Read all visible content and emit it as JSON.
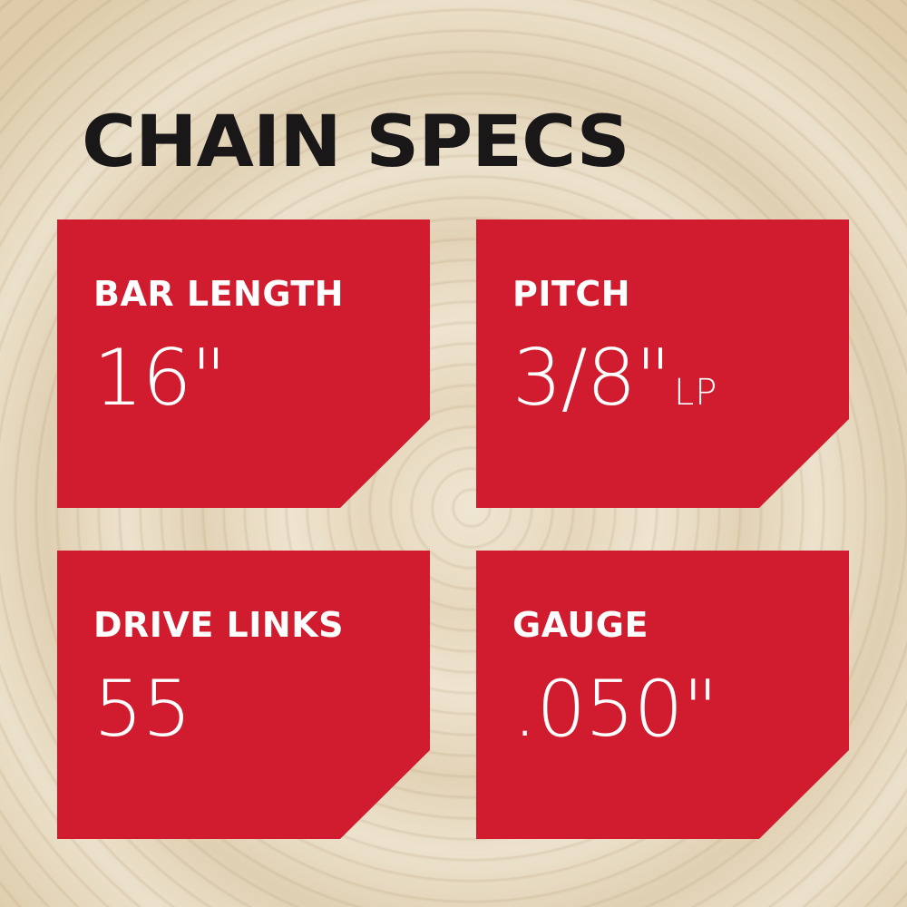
{
  "title": "CHAIN SPECS",
  "specs": [
    {
      "label": "BAR LENGTH",
      "value": "16\"",
      "suffix": ""
    },
    {
      "label": "PITCH",
      "value": "3/8\"",
      "suffix": "LP"
    },
    {
      "label": "DRIVE LINKS",
      "value": "55",
      "suffix": ""
    },
    {
      "label": "GAUGE",
      "value": ".050\"",
      "suffix": ""
    }
  ],
  "colors": {
    "card": "#d01c2e",
    "title": "#1a1718",
    "background": "#e8dcc4"
  }
}
